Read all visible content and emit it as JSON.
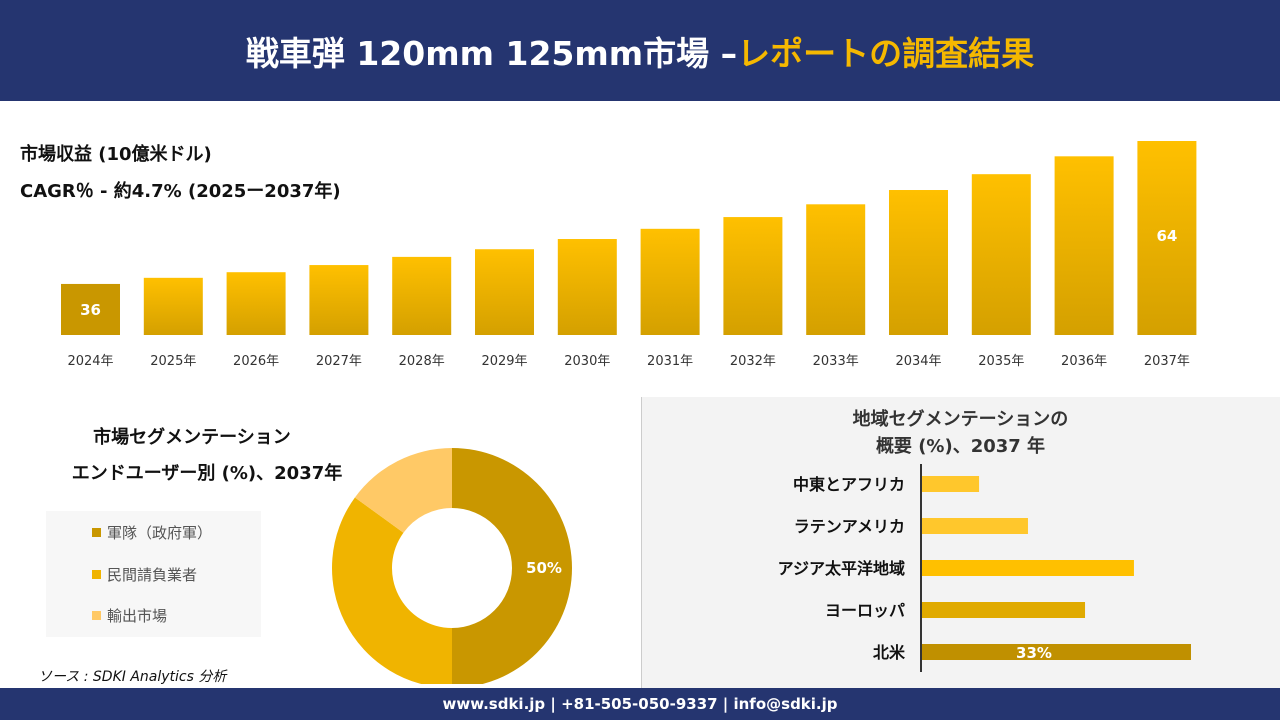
{
  "header": {
    "title_main": "戦車弾 120mm 125mm市場 –",
    "title_accent": "レポートの調査結果"
  },
  "colors": {
    "navy": "#253570",
    "accent": "#f5b800"
  },
  "chart_data": [
    {
      "type": "bar",
      "title": "市場収益 (10億米ドル)",
      "subtitle": "CAGR％ - 約4.7% (2025ー2037年)",
      "categories": [
        "2024年",
        "2025年",
        "2026年",
        "2027年",
        "2028年",
        "2029年",
        "2030年",
        "2031年",
        "2032年",
        "2033年",
        "2034年",
        "2035年",
        "2036年",
        "2037年"
      ],
      "values": [
        36,
        37.2,
        38.3,
        39.7,
        41.3,
        42.8,
        44.8,
        46.8,
        49.1,
        51.6,
        54.4,
        57.5,
        61,
        64
      ],
      "data_labels": {
        "0": "36",
        "13": "64"
      },
      "ylim": [
        26,
        66
      ],
      "grid": false
    },
    {
      "type": "pie",
      "title_line1": "市場セグメンテーション",
      "title_line2": "エンドユーザー別 (%)、2037年",
      "labels": [
        "軍隊（政府軍）",
        "民間請負業者",
        "輸出市場"
      ],
      "values": [
        50,
        35,
        15
      ],
      "colors": [
        "#c99700",
        "#f0b400",
        "#ffc966"
      ],
      "data_labels": {
        "0": "50%"
      },
      "legend": "left"
    },
    {
      "type": "bar",
      "orientation": "horizontal",
      "title_line1": "地域セグメンテーションの",
      "title_line2": "概要 (%)、2037 年",
      "categories": [
        "中東とアフリカ",
        "ラテンアメリカ",
        "アジア太平洋地域",
        "ヨーロッパ",
        "北米"
      ],
      "values": [
        7,
        13,
        26,
        20,
        33
      ],
      "colors": [
        "#ffc72c",
        "#ffc72c",
        "#ffc000",
        "#e0aa00",
        "#c09000"
      ],
      "data_labels": {
        "4": "33%"
      }
    }
  ],
  "source": "ソース : SDKI Analytics 分析",
  "footer": "www.sdki.jp | +81-505-050-9337 | info@sdki.jp"
}
